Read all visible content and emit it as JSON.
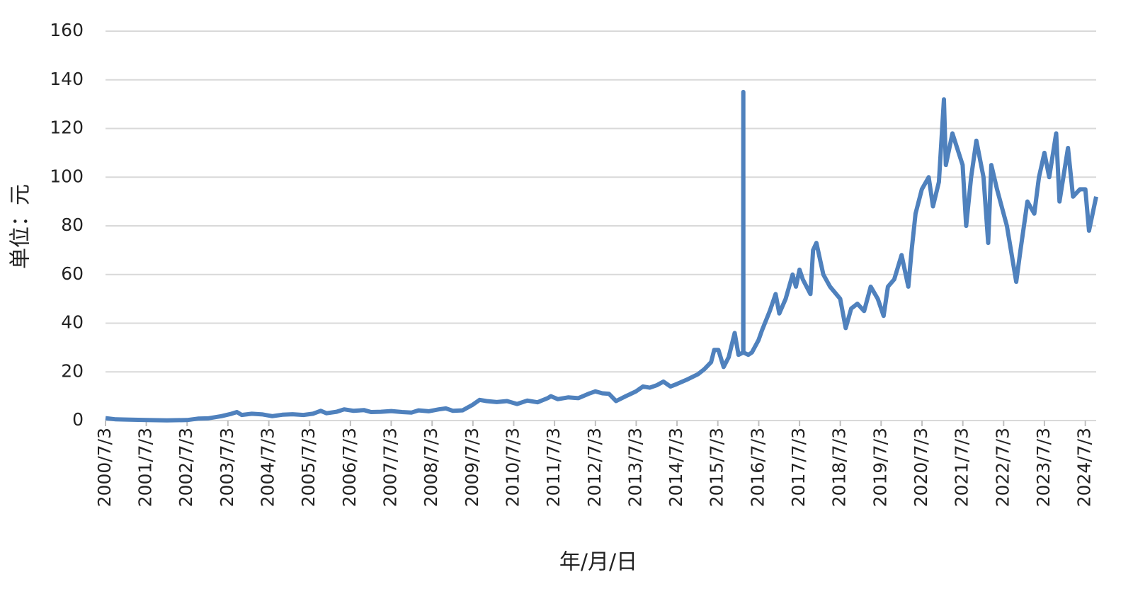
{
  "chart_data": {
    "type": "line",
    "y_label": "单位：元",
    "x_label": "年/月/日",
    "x": [
      "2000/7/3",
      "2000/10/3",
      "2001/1/3",
      "2001/7/3",
      "2002/1/3",
      "2002/7/3",
      "2002/10/8",
      "2003/1/6",
      "2003/5/6",
      "2003/8/4",
      "2003/9/22",
      "2003/11/3",
      "2004/2/2",
      "2004/5/10",
      "2004/8/2",
      "2004/11/1",
      "2005/2/1",
      "2005/5/9",
      "2005/8/1",
      "2005/10/10",
      "2005/12/1",
      "2006/3/1",
      "2006/5/8",
      "2006/8/1",
      "2006/11/1",
      "2007/1/4",
      "2007/4/2",
      "2007/7/3",
      "2007/10/8",
      "2008/1/2",
      "2008/3/3",
      "2008/6/2",
      "2008/9/1",
      "2008/11/3",
      "2009/1/5",
      "2009/4/1",
      "2009/7/1",
      "2009/9/1",
      "2009/11/2",
      "2010/2/1",
      "2010/5/4",
      "2010/8/2",
      "2010/11/1",
      "2011/2/1",
      "2011/5/3",
      "2011/6/1",
      "2011/8/1",
      "2011/11/1",
      "2012/2/1",
      "2012/5/2",
      "2012/7/2",
      "2012/9/3",
      "2012/11/1",
      "2013/1/4",
      "2013/4/1",
      "2013/7/1",
      "2013/9/2",
      "2013/11/1",
      "2014/1/2",
      "2014/3/3",
      "2014/5/5",
      "2014/7/1",
      "2014/10/8",
      "2015/1/5",
      "2015/3/2",
      "2015/5/4",
      "2015/6/1",
      "2015/7/8",
      "2015/8/24",
      "2015/10/8",
      "2015/12/1",
      "2016/1/4",
      "2016/2/15",
      "2016/2/16",
      "2016/2/17",
      "2016/4/1",
      "2016/5/3",
      "2016/7/1",
      "2016/8/1",
      "2016/10/10",
      "2016/12/1",
      "2017/1/3",
      "2017/3/1",
      "2017/5/2",
      "2017/6/1",
      "2017/7/3",
      "2017/8/1",
      "2017/10/9",
      "2017/11/1",
      "2017/12/1",
      "2018/2/1",
      "2018/4/2",
      "2018/7/2",
      "2018/8/20",
      "2018/10/8",
      "2018/12/3",
      "2019/2/1",
      "2019/4/1",
      "2019/6/3",
      "2019/7/25",
      "2019/9/2",
      "2019/10/28",
      "2020/1/2",
      "2020/3/2",
      "2020/4/1",
      "2020/5/6",
      "2020/7/1",
      "2020/9/1",
      "2020/10/9",
      "2020/12/1",
      "2021/1/15",
      "2021/2/1",
      "2021/4/1",
      "2021/7/1",
      "2021/8/2",
      "2021/9/15",
      "2021/11/1",
      "2022/1/4",
      "2022/2/15",
      "2022/3/15",
      "2022/5/5",
      "2022/8/1",
      "2022/10/24",
      "2022/12/1",
      "2023/2/1",
      "2023/4/3",
      "2023/5/15",
      "2023/7/3",
      "2023/8/15",
      "2023/10/16",
      "2023/11/15",
      "2024/1/30",
      "2024/3/15",
      "2024/5/15",
      "2024/7/3",
      "2024/8/5",
      "2024/10/8"
    ],
    "series": [
      {
        "color": "#4f81bd",
        "values": [
          1,
          0.5,
          0.4,
          0.2,
          0.1,
          0.2,
          0.8,
          0.9,
          1.8,
          2.8,
          3.5,
          2.3,
          2.8,
          2.5,
          1.8,
          2.4,
          2.6,
          2.3,
          2.8,
          4,
          3,
          3.6,
          4.6,
          4,
          4.3,
          3.5,
          3.6,
          3.9,
          3.5,
          3.3,
          4.2,
          3.8,
          4.6,
          5,
          4,
          4.2,
          6.5,
          8.5,
          8,
          7.6,
          8,
          6.8,
          8.2,
          7.5,
          9.2,
          10,
          8.8,
          9.5,
          9.2,
          11,
          12,
          11.2,
          11,
          8,
          10,
          12,
          14,
          13.5,
          14.5,
          16,
          14,
          15,
          17,
          19,
          21,
          24,
          29,
          29,
          22,
          26,
          36,
          27,
          28,
          135,
          28,
          27,
          28,
          33,
          37,
          45,
          52,
          44,
          50,
          60,
          55,
          62,
          58,
          52,
          70,
          73,
          60,
          55,
          50,
          38,
          46,
          48,
          45,
          55,
          50,
          43,
          55,
          58,
          68,
          55,
          70,
          85,
          95,
          100,
          88,
          98,
          132,
          105,
          118,
          105,
          80,
          100,
          115,
          100,
          73,
          105,
          95,
          80,
          57,
          70,
          90,
          85,
          100,
          110,
          100,
          118,
          90,
          112,
          92,
          95,
          95,
          78,
          92
        ]
      }
    ],
    "xlim": [
      "2000/7/3",
      "2024/10/8"
    ],
    "xticks": [
      "2000/7/3",
      "2001/7/3",
      "2002/7/3",
      "2003/7/3",
      "2004/7/3",
      "2005/7/3",
      "2006/7/3",
      "2007/7/3",
      "2008/7/3",
      "2009/7/3",
      "2010/7/3",
      "2011/7/3",
      "2012/7/3",
      "2013/7/3",
      "2014/7/3",
      "2015/7/3",
      "2016/7/3",
      "2017/7/3",
      "2018/7/3",
      "2019/7/3",
      "2020/7/3",
      "2021/7/3",
      "2022/7/3",
      "2023/7/3",
      "2024/7/3"
    ],
    "ylim": [
      0,
      160
    ],
    "yticks": [
      0,
      20,
      40,
      60,
      80,
      100,
      120,
      140,
      160
    ],
    "grid": true
  }
}
